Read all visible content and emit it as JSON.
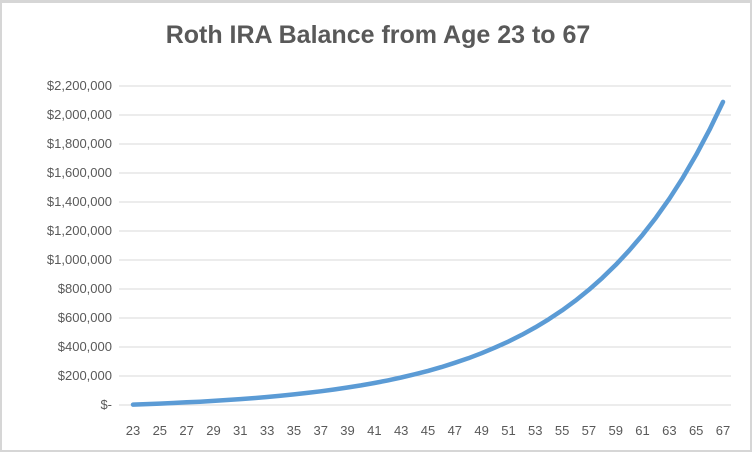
{
  "colors": {
    "line": "#5B9BD5",
    "gridline": "#D9D9D9",
    "title_text": "#595959",
    "axis_label_text": "#595959",
    "frame_border": "#D6D6D6",
    "background": "#FFFFFF"
  },
  "chart_data": {
    "type": "line",
    "title": "Roth IRA Balance from Age 23 to 67",
    "xlabel": "",
    "ylabel": "",
    "legend": "none",
    "grid": "horizontal",
    "xlim": [
      23,
      67
    ],
    "ylim": [
      0,
      2200000
    ],
    "y_tick_step": 200000,
    "x": [
      23,
      24,
      25,
      26,
      27,
      28,
      29,
      30,
      31,
      32,
      33,
      34,
      35,
      36,
      37,
      38,
      39,
      40,
      41,
      42,
      43,
      44,
      45,
      46,
      47,
      48,
      49,
      50,
      51,
      52,
      53,
      54,
      55,
      56,
      57,
      58,
      59,
      60,
      61,
      62,
      63,
      64,
      65,
      66,
      67
    ],
    "series": [
      {
        "name": "Roth IRA Balance",
        "color": "#5B9BD5",
        "values": [
          3000,
          6300,
          9900,
          13900,
          18300,
          23100,
          28400,
          34200,
          40600,
          47600,
          55300,
          63800,
          73100,
          83300,
          94600,
          106900,
          120500,
          135500,
          151900,
          169900,
          189700,
          211500,
          235400,
          261700,
          290700,
          322400,
          357400,
          395700,
          437900,
          484300,
          535200,
          591200,
          652700,
          720300,
          794600,
          876300,
          966000,
          1064700,
          1173100,
          1292200,
          1423100,
          1567000,
          1725200,
          1899000,
          2090000
        ]
      }
    ],
    "x_tick_labels": [
      "23",
      "25",
      "27",
      "29",
      "31",
      "33",
      "35",
      "37",
      "39",
      "41",
      "43",
      "45",
      "47",
      "49",
      "51",
      "53",
      "55",
      "57",
      "59",
      "61",
      "63",
      "65",
      "67"
    ],
    "y_tick_labels": [
      "$2,200,000",
      "$2,000,000",
      "$1,800,000",
      "$1,600,000",
      "$1,400,000",
      "$1,200,000",
      "$1,000,000",
      "$800,000",
      "$600,000",
      "$400,000",
      "$200,000",
      "$-"
    ]
  }
}
